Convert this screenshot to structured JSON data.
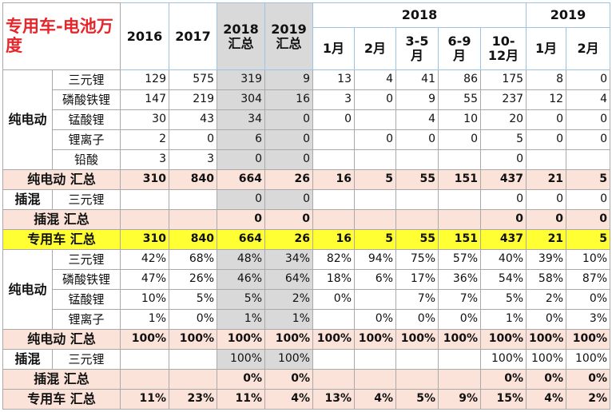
{
  "table": {
    "title": "专用车-电池万度",
    "year_columns": [
      "2016",
      "2017",
      "2018\n汇总",
      "2019\n汇总"
    ],
    "period_groups": [
      {
        "year": "2018",
        "months": [
          "1月",
          "2月",
          "3-5\n月",
          "6-9\n月",
          "10-\n12月"
        ]
      },
      {
        "year": "2019",
        "months": [
          "1月",
          "2月"
        ]
      }
    ],
    "rows": [
      {
        "group": "纯电动",
        "items": [
          {
            "label": "三元锂",
            "values": [
              129,
              575,
              319,
              9,
              13,
              4,
              41,
              86,
              175,
              8,
              0
            ]
          },
          {
            "label": "磷酸铁锂",
            "values": [
              147,
              219,
              304,
              16,
              3,
              0,
              9,
              55,
              237,
              12,
              4
            ]
          },
          {
            "label": "锰酸锂",
            "values": [
              30,
              43,
              34,
              0,
              0,
              null,
              4,
              10,
              20,
              0,
              0
            ]
          },
          {
            "label": "锂离子",
            "values": [
              2,
              0,
              6,
              0,
              null,
              0,
              0,
              0,
              5,
              0,
              0
            ]
          },
          {
            "label": "铅酸",
            "values": [
              3,
              3,
              0,
              0,
              null,
              null,
              null,
              null,
              0,
              null,
              null
            ]
          }
        ]
      },
      {
        "label": "纯电动 汇总",
        "style": "subtotal",
        "values": [
          310,
          840,
          664,
          26,
          16,
          5,
          55,
          151,
          437,
          21,
          5
        ]
      },
      {
        "group": "插混",
        "items": [
          {
            "label": "三元锂",
            "values": [
              null,
              null,
              0,
              0,
              null,
              null,
              null,
              null,
              0,
              0,
              0
            ]
          }
        ]
      },
      {
        "label": "插混 汇总",
        "style": "subtotal",
        "values": [
          null,
          null,
          0,
          0,
          null,
          null,
          null,
          null,
          0,
          0,
          0
        ]
      },
      {
        "label": "专用车 汇总",
        "style": "total",
        "values": [
          310,
          840,
          664,
          26,
          16,
          5,
          55,
          151,
          437,
          21,
          5
        ]
      },
      {
        "group": "纯电动",
        "items": [
          {
            "label": "三元锂",
            "values": [
              "42%",
              "68%",
              "48%",
              "34%",
              "82%",
              "94%",
              "75%",
              "57%",
              "40%",
              "39%",
              "10%"
            ]
          },
          {
            "label": "磷酸铁锂",
            "values": [
              "47%",
              "26%",
              "46%",
              "64%",
              "18%",
              "6%",
              "17%",
              "36%",
              "54%",
              "58%",
              "87%"
            ]
          },
          {
            "label": "锰酸锂",
            "values": [
              "10%",
              "5%",
              "5%",
              "2%",
              "0%",
              null,
              "7%",
              "7%",
              "5%",
              "2%",
              "0%"
            ]
          },
          {
            "label": "锂离子",
            "values": [
              "1%",
              "0%",
              "1%",
              "1%",
              null,
              "0%",
              "0%",
              "0%",
              "1%",
              "0%",
              "3%"
            ]
          }
        ]
      },
      {
        "label": "纯电动 汇总",
        "style": "subtotal",
        "values": [
          "100%",
          "100%",
          "100%",
          "100%",
          "100%",
          "100%",
          "100%",
          "100%",
          "100%",
          "100%",
          "100%"
        ]
      },
      {
        "group": "插混",
        "items": [
          {
            "label": "三元锂",
            "values": [
              null,
              null,
              "100%",
              "100%",
              null,
              null,
              null,
              null,
              "100%",
              "100%",
              "100%"
            ]
          }
        ]
      },
      {
        "label": "插混 汇总",
        "style": "subtotal",
        "values": [
          null,
          null,
          "0%",
          "0%",
          null,
          null,
          null,
          null,
          "0%",
          "0%",
          "0%"
        ]
      },
      {
        "label": "专用车 汇总",
        "style": "subtotal",
        "values": [
          "11%",
          "23%",
          "11%",
          "4%",
          "13%",
          "4%",
          "5%",
          "9%",
          "15%",
          "4%",
          "2%"
        ]
      }
    ]
  }
}
